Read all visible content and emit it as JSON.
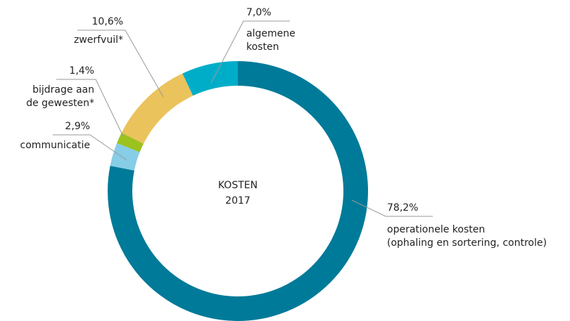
{
  "chart_data": {
    "type": "donut",
    "center_label": [
      "KOSTEN",
      "2017"
    ],
    "categories": [
      [
        "operationele kosten",
        "(ophaling en sortering, controle)"
      ],
      [
        "communicatie"
      ],
      [
        "bijdrage aan",
        "de gewesten*"
      ],
      [
        "zwerfvuil*"
      ],
      [
        "algemene",
        "kosten"
      ]
    ],
    "values": [
      78.2,
      2.9,
      1.4,
      10.6,
      7.0
    ],
    "value_labels": [
      "78,2%",
      "2,9%",
      "1,4%",
      "10,6%",
      "7,0%"
    ],
    "colors": [
      "#007a99",
      "#87cde6",
      "#9bc21f",
      "#ebc35c",
      "#00adc9"
    ]
  }
}
